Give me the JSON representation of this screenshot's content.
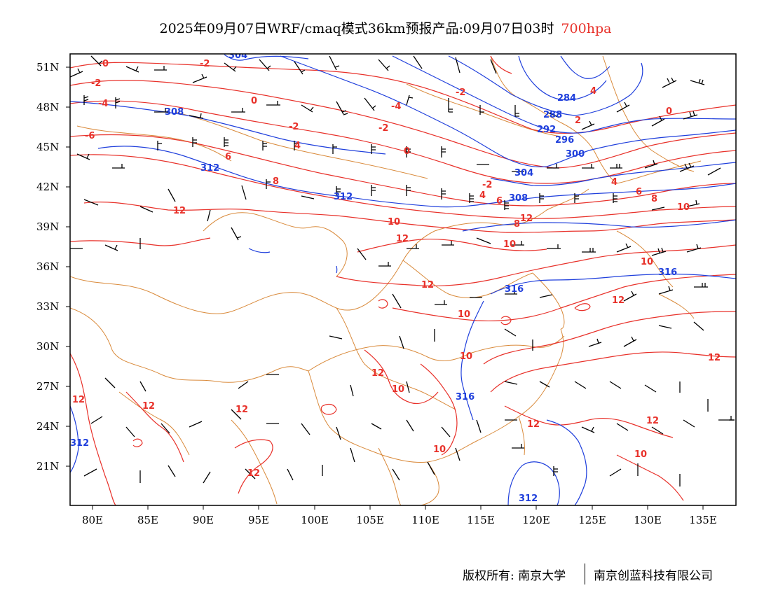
{
  "title": {
    "main": "2025年09月07日WRF/cmaq模式36km预报产品:09月07日03时",
    "level": "700hpa",
    "level_color": "#e8312a"
  },
  "map": {
    "lon_range": [
      78,
      138
    ],
    "lat_range": [
      18,
      52
    ],
    "lat_ticks": [
      "51N",
      "48N",
      "45N",
      "42N",
      "39N",
      "36N",
      "33N",
      "30N",
      "27N",
      "24N",
      "21N"
    ],
    "lon_ticks": [
      "80E",
      "85E",
      "90E",
      "95E",
      "100E",
      "105E",
      "110E",
      "115E",
      "120E",
      "125E",
      "130E",
      "135E"
    ],
    "contour_colors": {
      "temperature": "#e8312a",
      "height": "#1f3fdc",
      "boundary": "#d98a3b",
      "wind": "#000000"
    },
    "height_labels": [
      "304",
      "308",
      "312",
      "284",
      "288",
      "292",
      "296",
      "300",
      "304",
      "308",
      "312",
      "316",
      "316",
      "316",
      "312",
      "312"
    ],
    "temperature_labels": [
      "0",
      "-2",
      "-2",
      "-4",
      "0",
      "-2",
      "-6",
      "-4",
      "-2",
      "0",
      "4",
      "-2",
      "6",
      "4",
      "0",
      "2",
      "4",
      "6",
      "8",
      "12",
      "10",
      "12",
      "-2",
      "4",
      "6",
      "8",
      "10",
      "12",
      "12",
      "10",
      "10",
      "8",
      "12",
      "10",
      "12",
      "10",
      "12",
      "12",
      "12",
      "12",
      "12",
      "10",
      "10",
      "12",
      "12",
      "10"
    ]
  },
  "footer": {
    "left": "版权所有: 南京大学",
    "right": "南京创蓝科技有限公司"
  }
}
